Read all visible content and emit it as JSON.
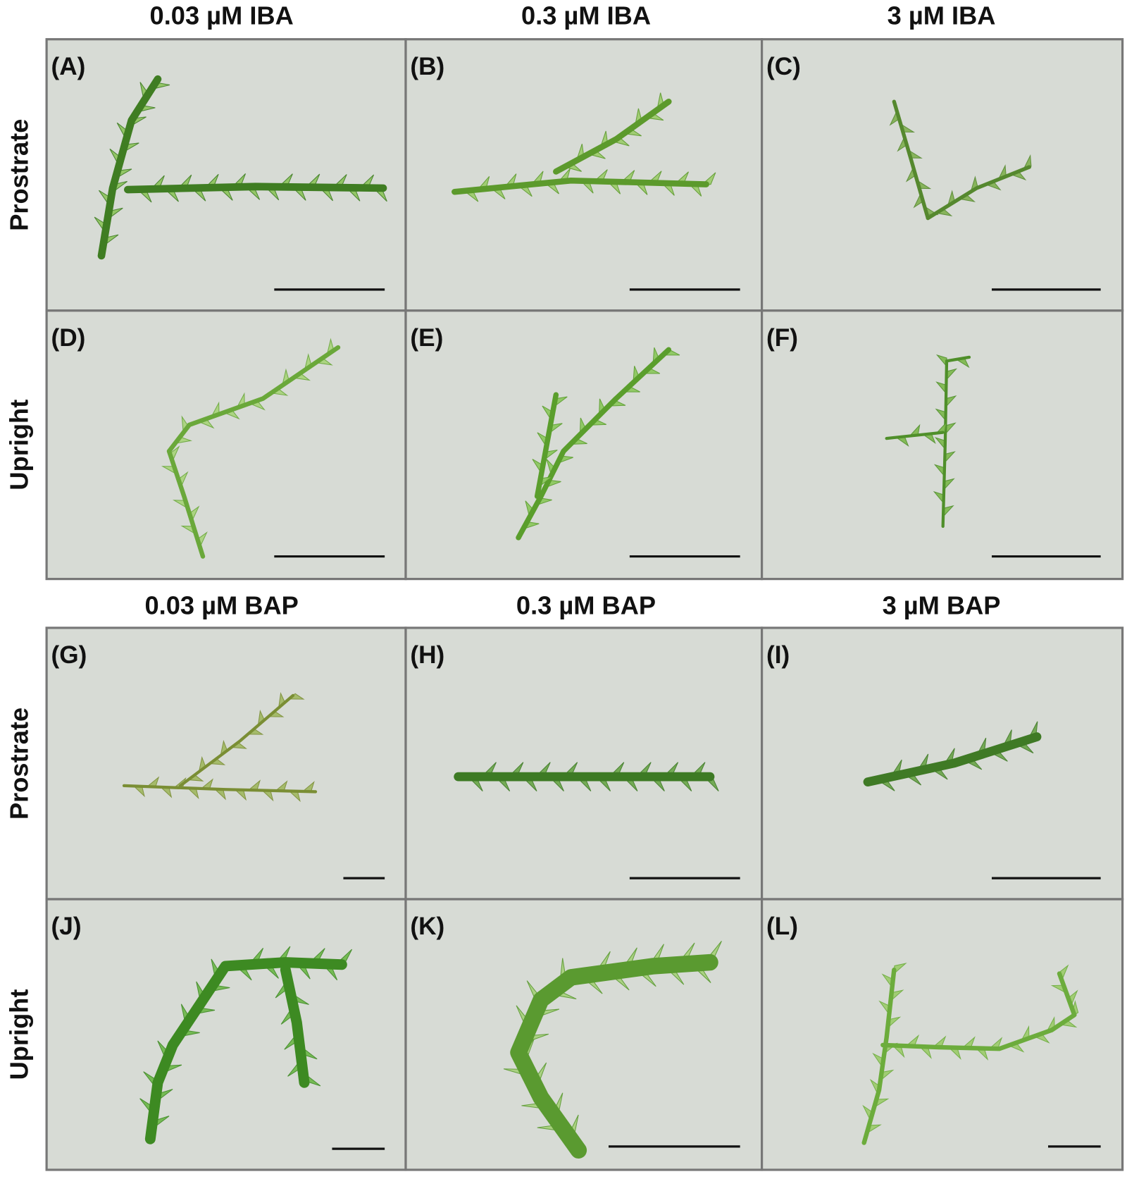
{
  "column_headers_top": [
    "0.03 µM IBA",
    "0.3 µM IBA",
    "3 µM IBA"
  ],
  "column_headers_bottom": [
    "0.03 µM BAP",
    "0.3 µM BAP",
    "3 µM BAP"
  ],
  "row_labels": [
    "Prostrate",
    "Upright",
    "Prostrate",
    "Upright"
  ],
  "panel_labels": [
    "(A)",
    "(B)",
    "(C)",
    "(D)",
    "(E)",
    "(F)",
    "(G)",
    "(H)",
    "(I)",
    "(J)",
    "(K)",
    "(L)"
  ]
}
